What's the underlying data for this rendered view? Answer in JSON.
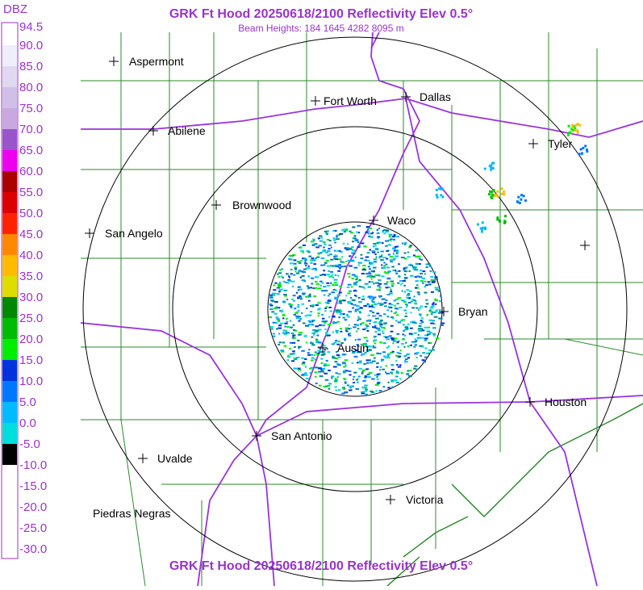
{
  "header": {
    "title": "GRK Ft Hood 20250618/2100 Reflectivity Elev 0.5°",
    "subtitle": "Beam Heights: 184 1645 4282 8095 m"
  },
  "footer": {
    "title": "GRK Ft Hood 20250618/2100 Reflectivity Elev 0.5°"
  },
  "legend": {
    "title": "DBZ",
    "labels": [
      "94.5",
      "90.0",
      "85.0",
      "80.0",
      "75.0",
      "70.0",
      "65.0",
      "60.0",
      "55.0",
      "50.0",
      "45.0",
      "40.0",
      "35.0",
      "30.0",
      "25.0",
      "20.0",
      "15.0",
      "10.0",
      "5.0",
      "0.0",
      "-5.0",
      "-10.0",
      "-15.0",
      "-20.0",
      "-25.0",
      "-30.0"
    ]
  },
  "cities": [
    "Aspermont",
    "Fort Worth",
    "Dallas",
    "Abilene",
    "Tyler",
    "Brownwood",
    "Waco",
    "San Angelo",
    "Bryan",
    "Austin",
    "Houston",
    "San Antonio",
    "Uvalde",
    "Victoria",
    "Piedras Negras"
  ]
}
